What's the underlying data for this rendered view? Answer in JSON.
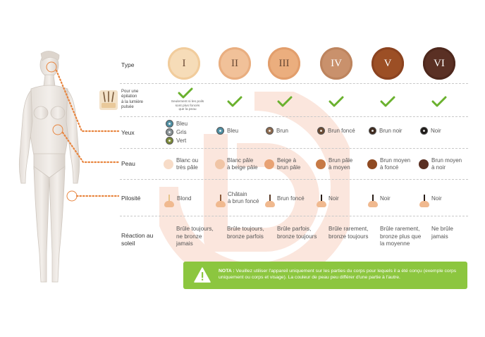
{
  "rows": {
    "type": "Type",
    "ipl": [
      "Pour une",
      "épilation",
      "à la lumière",
      "pulsée"
    ],
    "eyes": "Yeux",
    "skin": "Peau",
    "hair": "Pilosité",
    "sun": [
      "Réaction au",
      "soleil"
    ]
  },
  "types": [
    {
      "label": "I",
      "color": "#f6dcb8",
      "ring": "#f1cc9c"
    },
    {
      "label": "II",
      "color": "#f1c199",
      "ring": "#e9ae80"
    },
    {
      "label": "III",
      "color": "#ebae7e",
      "ring": "#e29e6c"
    },
    {
      "label": "IV",
      "color": "#c9916c",
      "ring": "#bd845e"
    },
    {
      "label": "V",
      "color": "#9c4f25",
      "ring": "#8b4320"
    },
    {
      "label": "VI",
      "color": "#5a3024",
      "ring": "#4e281d"
    }
  ],
  "ipl_note": [
    "Seulement si les poils",
    "sont plus foncés",
    "que la peau"
  ],
  "eyes": {
    "col1": [
      {
        "label": "Bleu",
        "color": "#4f8fa3"
      },
      {
        "label": "Gris",
        "color": "#8a9397"
      },
      {
        "label": "Vert",
        "color": "#7c8a3a"
      }
    ],
    "others": [
      {
        "label": "Bleu",
        "color": "#4f8fa3"
      },
      {
        "label": "Brun",
        "color": "#8c6a4f"
      },
      {
        "label": "Brun foncé",
        "color": "#6a4a33"
      },
      {
        "label": "Brun noir",
        "color": "#3f2a1e"
      },
      {
        "label": "Noir",
        "color": "#1e1a18"
      }
    ]
  },
  "skin": [
    {
      "lines": [
        "Blanc ou",
        "très pâle"
      ],
      "color": "#f7dcc8"
    },
    {
      "lines": [
        "Blanc pâle",
        "à beige pâle"
      ],
      "color": "#f0c5a6"
    },
    {
      "lines": [
        "Beige à",
        "brun pâle"
      ],
      "color": "#e8a274"
    },
    {
      "lines": [
        "Brun pâle",
        "à moyen"
      ],
      "color": "#c77a46"
    },
    {
      "lines": [
        "Brun moyen",
        "à foncé"
      ],
      "color": "#8f4a22"
    },
    {
      "lines": [
        "Brun moyen",
        "à noir"
      ],
      "color": "#5a2f22"
    }
  ],
  "hair": [
    {
      "lines": [
        "Blond"
      ],
      "color": "#e7c48a"
    },
    {
      "lines": [
        "Châtain",
        "à brun foncé"
      ],
      "color": "#8a5a3a"
    },
    {
      "lines": [
        "Brun foncé"
      ],
      "color": "#5a3a26"
    },
    {
      "lines": [
        "Noir"
      ],
      "color": "#2a1d17"
    },
    {
      "lines": [
        "Noir"
      ],
      "color": "#2a1d17"
    },
    {
      "lines": [
        "Noir"
      ],
      "color": "#2a1d17"
    }
  ],
  "sun": [
    [
      "Brûle toujours,",
      "ne bronze",
      "jamais"
    ],
    [
      "Brûle toujours,",
      "bronze parfois"
    ],
    [
      "Brûle parfois,",
      "bronze toujours"
    ],
    [
      "Brûle rarement,",
      "bronze toujours"
    ],
    [
      "Brûle rarement,",
      "bronze plus que",
      "la moyenne"
    ],
    [
      "Ne brûle",
      "jamais"
    ]
  ],
  "note": {
    "label": "NOTA :",
    "text": "Veuillez utiliser l'appareil uniquement sur les parties du corps pour lequels il a été conçu (exemple corps uniquement ou corps et visage). La couleur de peau peu différer d'une partie à l'autre."
  },
  "colors": {
    "accent": "#8cc63f",
    "check": "#6ab12e",
    "dots": "#e8853f"
  }
}
